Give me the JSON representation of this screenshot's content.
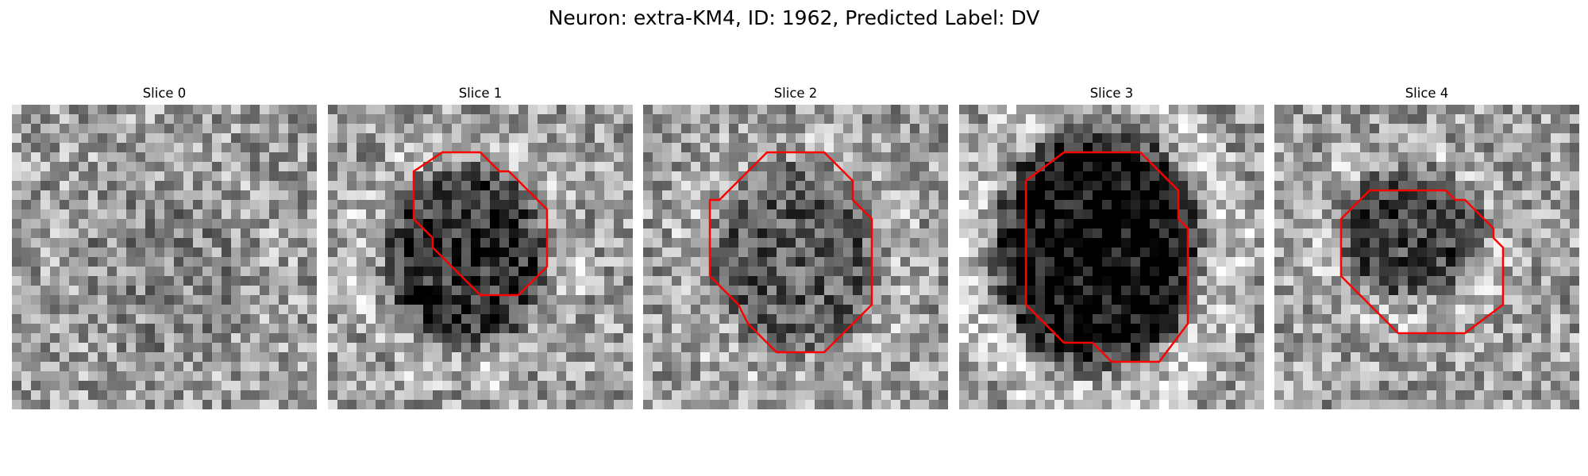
{
  "figure": {
    "title": "Neuron: extra-KM4, ID: 1962, Predicted Label: DV"
  },
  "colors": {
    "contour": "#ff0000"
  },
  "panels": [
    {
      "title": "Slice 0",
      "dark_level": 0.1,
      "has_contour": false
    },
    {
      "title": "Slice 1",
      "dark_level": 0.55,
      "has_contour": true
    },
    {
      "title": "Slice 2",
      "dark_level": 0.35,
      "has_contour": true
    },
    {
      "title": "Slice 3",
      "dark_level": 0.8,
      "has_contour": true
    },
    {
      "title": "Slice 4",
      "dark_level": 0.45,
      "has_contour": true
    }
  ]
}
